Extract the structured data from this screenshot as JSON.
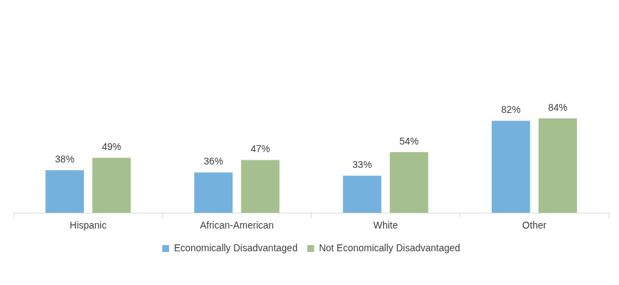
{
  "chart_data": {
    "type": "bar",
    "categories": [
      "Hispanic",
      "African-American",
      "White",
      "Other"
    ],
    "series": [
      {
        "name": "Economically Disadvantaged",
        "color": "#75b1dd",
        "values": [
          38,
          36,
          33,
          82
        ],
        "value_labels": [
          "38%",
          "36%",
          "33%",
          "82%"
        ]
      },
      {
        "name": "Not Economically Disadvantaged",
        "color": "#a6bf8e",
        "values": [
          49,
          47,
          54,
          84
        ],
        "value_labels": [
          "49%",
          "47%",
          "54%",
          "84%"
        ]
      }
    ],
    "ylim": [
      0,
      100
    ],
    "grid": false,
    "legend": "bottom",
    "data_labels": true,
    "tick_labels": "x"
  }
}
